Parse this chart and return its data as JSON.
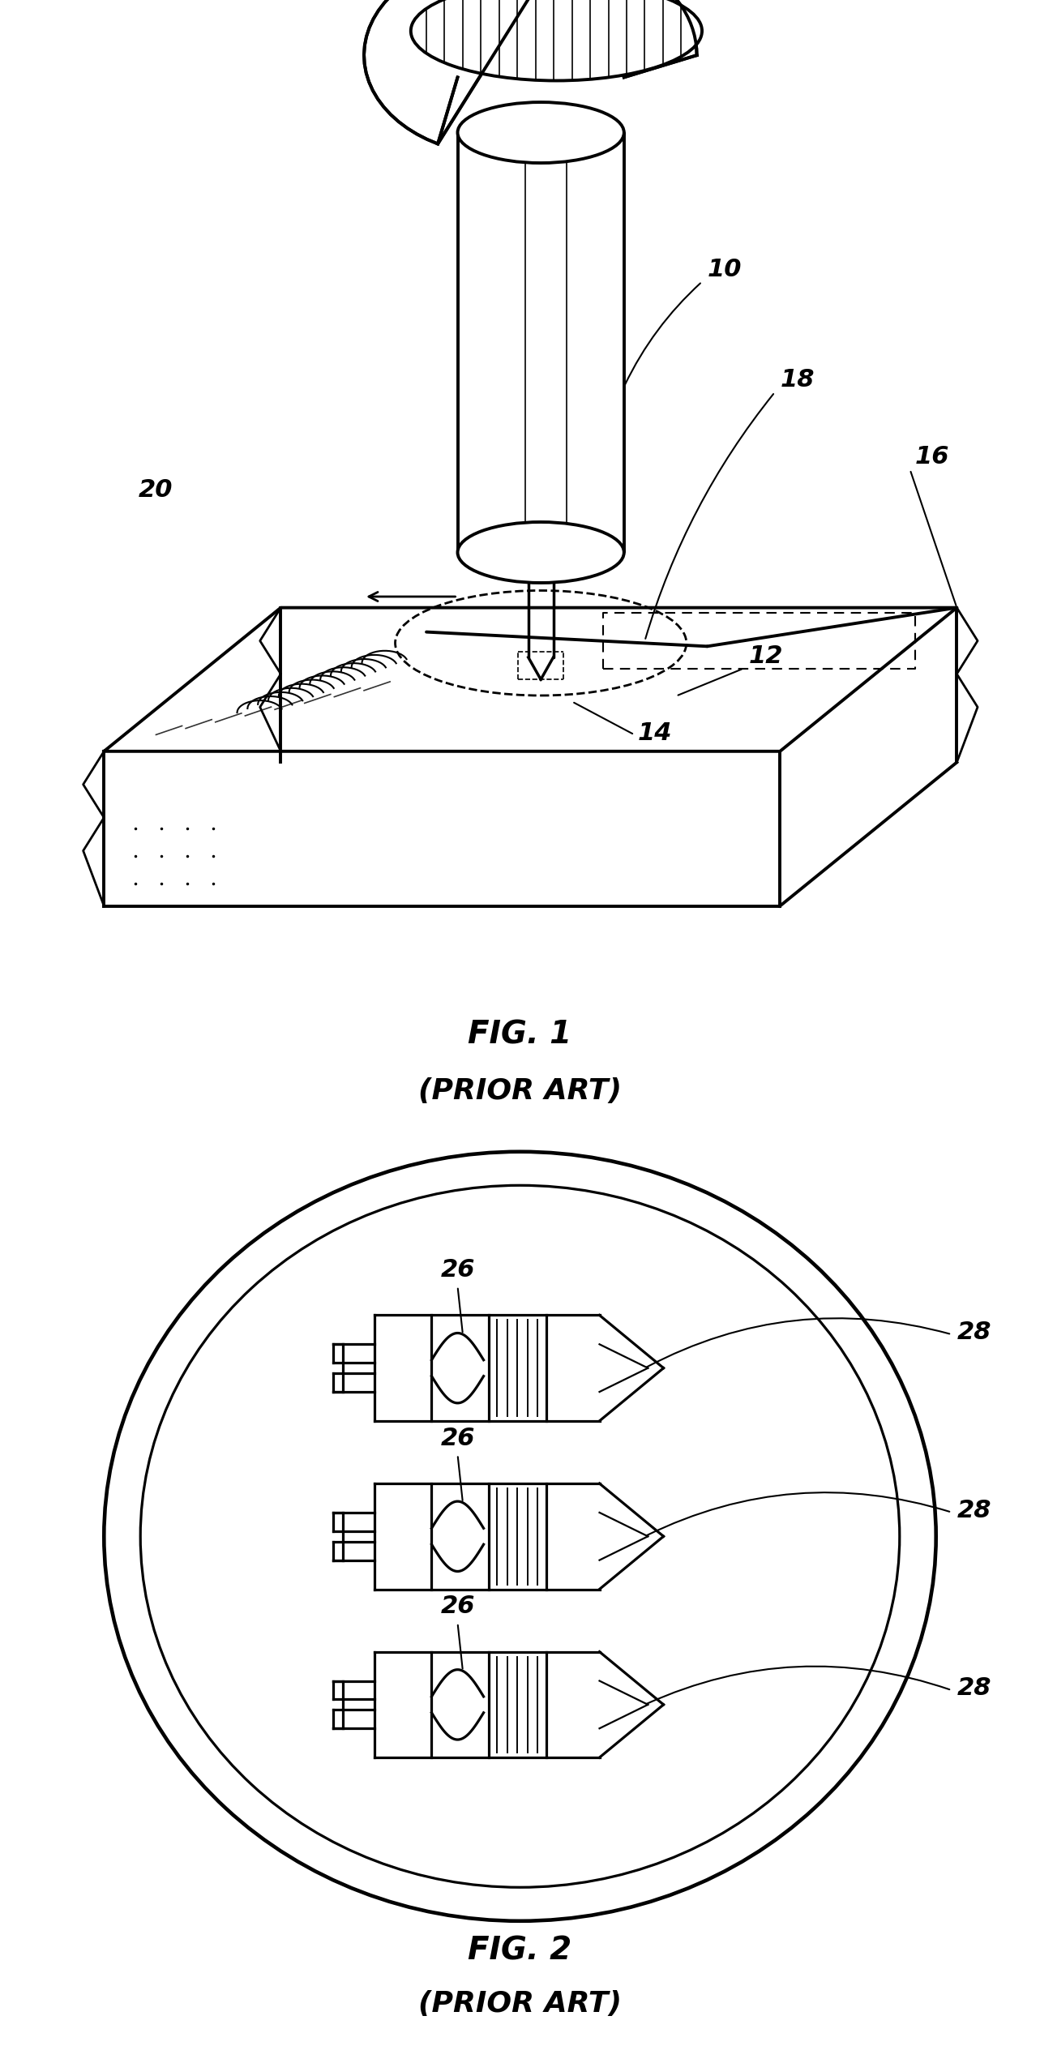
{
  "bg_color": "#ffffff",
  "line_color": "#000000",
  "fig1_caption": "FIG. 1",
  "fig1_subcaption": "(PRIOR ART)",
  "fig2_caption": "FIG. 2",
  "fig2_subcaption": "(PRIOR ART)",
  "fig1_labels": [
    "10",
    "18",
    "16",
    "20",
    "12",
    "14"
  ],
  "fig2_labels": [
    "26",
    "26",
    "26",
    "28",
    "28",
    "28"
  ],
  "lw_main": 2.0,
  "lw_thick": 2.8,
  "lw_thin": 1.2,
  "font_size_label": 22,
  "font_size_caption": 28
}
